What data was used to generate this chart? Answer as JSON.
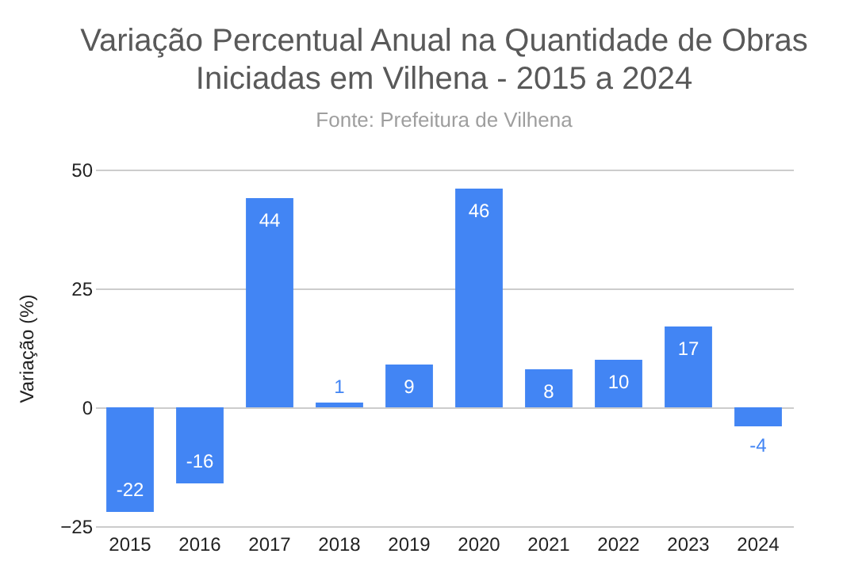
{
  "chart_data": {
    "type": "bar",
    "title": "Variação Percentual Anual na Quantidade de Obras Iniciadas em Vilhena - 2015 a 2024",
    "subtitle": "Fonte: Prefeitura de Vilhena",
    "ylabel": "Variação (%)",
    "categories": [
      "2015",
      "2016",
      "2017",
      "2018",
      "2019",
      "2020",
      "2021",
      "2022",
      "2023",
      "2024"
    ],
    "values": [
      -22,
      -16,
      44,
      1,
      9,
      46,
      8,
      10,
      17,
      -4
    ],
    "color": "#4285f4",
    "ylim": [
      -25,
      50
    ],
    "yticks": [
      -25,
      0,
      25,
      50
    ],
    "grid": "y",
    "data_labels": true
  }
}
